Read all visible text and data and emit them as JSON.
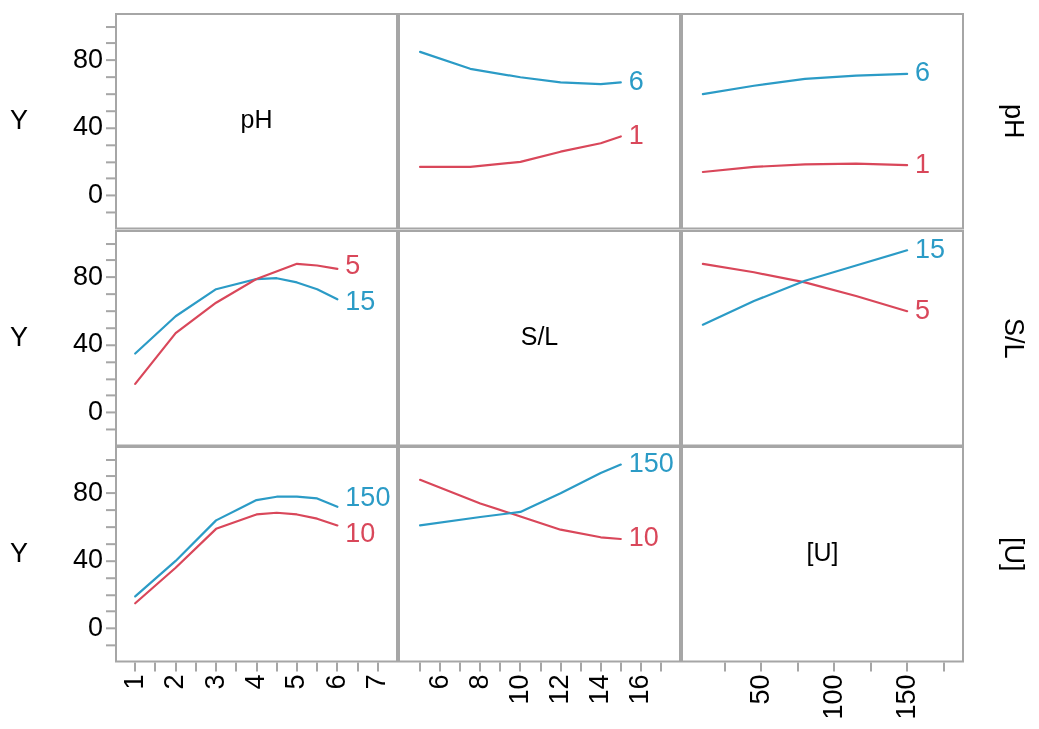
{
  "chart_data": [
    {
      "type": "line",
      "ylabel": "Y",
      "annotations": [
        "pH"
      ],
      "xlim": [
        0.5,
        7.5
      ],
      "ylim": [
        -20,
        108
      ],
      "yticks": [
        {
          "value": -10,
          "label": null
        },
        0,
        {
          "value": 10,
          "label": null
        },
        {
          "value": 20,
          "label": null
        },
        {
          "value": 30,
          "label": null
        },
        40,
        {
          "value": 50,
          "label": null
        },
        {
          "value": 60,
          "label": null
        },
        {
          "value": 70,
          "label": null
        },
        80,
        {
          "value": 90,
          "label": null
        },
        {
          "value": 100,
          "label": null
        }
      ],
      "tick_labels": "y",
      "grid": false
    },
    {
      "type": "line",
      "xlim": [
        3.9,
        18
      ],
      "ylim": [
        -20,
        108
      ],
      "tick_labels": false,
      "grid": false,
      "series": [
        {
          "name": "6",
          "color": "#2b9bc6",
          "x": [
            5,
            7.5,
            10,
            12,
            14,
            15
          ],
          "values": [
            85,
            75,
            70,
            67,
            66,
            67
          ]
        },
        {
          "name": "1",
          "color": "#d9475a",
          "x": [
            5,
            7.5,
            10,
            12,
            14,
            15
          ],
          "values": [
            17,
            17,
            20,
            26,
            31,
            35
          ]
        }
      ]
    },
    {
      "type": "line",
      "y2label": "pH",
      "xlim": [
        -5,
        189
      ],
      "ylim": [
        -20,
        108
      ],
      "tick_labels": false,
      "grid": false,
      "series": [
        {
          "name": "6",
          "color": "#2b9bc6",
          "x": [
            10,
            45,
            80,
            115,
            150
          ],
          "values": [
            60,
            65,
            69,
            71,
            72
          ]
        },
        {
          "name": "1",
          "color": "#d9475a",
          "x": [
            10,
            45,
            80,
            115,
            150
          ],
          "values": [
            14,
            17,
            18.5,
            19,
            18
          ]
        }
      ]
    },
    {
      "type": "line",
      "ylabel": "Y",
      "xlim": [
        0.5,
        7.5
      ],
      "ylim": [
        -20,
        108
      ],
      "yticks": [
        {
          "value": -10,
          "label": null
        },
        0,
        {
          "value": 10,
          "label": null
        },
        {
          "value": 20,
          "label": null
        },
        {
          "value": 30,
          "label": null
        },
        40,
        {
          "value": 50,
          "label": null
        },
        {
          "value": 60,
          "label": null
        },
        {
          "value": 70,
          "label": null
        },
        80,
        {
          "value": 90,
          "label": null
        },
        {
          "value": 100,
          "label": null
        }
      ],
      "tick_labels": "y",
      "grid": false,
      "series": [
        {
          "name": "5",
          "color": "#d9475a",
          "x": [
            1,
            2,
            3,
            4,
            5,
            5.5,
            6
          ],
          "values": [
            17,
            47,
            65,
            79,
            88,
            87,
            85
          ]
        },
        {
          "name": "15",
          "color": "#2b9bc6",
          "x": [
            1,
            2,
            3,
            4,
            4.5,
            5,
            5.5,
            6
          ],
          "values": [
            35,
            57,
            73,
            79,
            79.5,
            77,
            73,
            67
          ]
        }
      ]
    },
    {
      "type": "line",
      "annotations": [
        "S/L"
      ],
      "xlim": [
        3.9,
        18
      ],
      "ylim": [
        -20,
        108
      ],
      "tick_labels": false,
      "grid": false
    },
    {
      "type": "line",
      "y2label": "S/L",
      "xlim": [
        -5,
        189
      ],
      "ylim": [
        -20,
        108
      ],
      "tick_labels": false,
      "grid": false,
      "series": [
        {
          "name": "15",
          "color": "#2b9bc6",
          "x": [
            10,
            45,
            80,
            115,
            150
          ],
          "values": [
            52,
            66,
            78,
            87,
            96
          ]
        },
        {
          "name": "5",
          "color": "#d9475a",
          "x": [
            10,
            45,
            80,
            115,
            150
          ],
          "values": [
            88,
            83,
            77,
            69,
            60
          ]
        }
      ]
    },
    {
      "type": "line",
      "ylabel": "Y",
      "xlim": [
        0.5,
        7.5
      ],
      "ylim": [
        -20,
        108
      ],
      "xticks": [
        1,
        {
          "value": 1.5,
          "label": null
        },
        2,
        {
          "value": 2.5,
          "label": null
        },
        3,
        {
          "value": 3.5,
          "label": null
        },
        4,
        {
          "value": 4.5,
          "label": null
        },
        5,
        {
          "value": 5.5,
          "label": null
        },
        6,
        {
          "value": 6.5,
          "label": null
        },
        7
      ],
      "yticks": [
        {
          "value": -10,
          "label": null
        },
        0,
        {
          "value": 10,
          "label": null
        },
        {
          "value": 20,
          "label": null
        },
        {
          "value": 30,
          "label": null
        },
        40,
        {
          "value": 50,
          "label": null
        },
        {
          "value": 60,
          "label": null
        },
        {
          "value": 70,
          "label": null
        },
        80,
        {
          "value": 90,
          "label": null
        },
        {
          "value": 100,
          "label": null
        }
      ],
      "grid": false,
      "series": [
        {
          "name": "150",
          "color": "#2b9bc6",
          "x": [
            1,
            2,
            3,
            4,
            4.5,
            5,
            5.5,
            6
          ],
          "values": [
            19,
            40,
            64,
            76,
            78,
            78,
            77,
            72
          ]
        },
        {
          "name": "10",
          "color": "#d9475a",
          "x": [
            1,
            2,
            3,
            4,
            4.5,
            5,
            5.5,
            6
          ],
          "values": [
            15,
            36,
            59,
            67.5,
            68.5,
            67.5,
            65,
            61
          ]
        }
      ]
    },
    {
      "type": "line",
      "xlim": [
        3.9,
        18
      ],
      "ylim": [
        -20,
        108
      ],
      "xticks": [
        {
          "value": 5,
          "label": null
        },
        6,
        {
          "value": 7,
          "label": null
        },
        8,
        {
          "value": 9,
          "label": null
        },
        10,
        {
          "value": 11,
          "label": null
        },
        12,
        {
          "value": 13,
          "label": null
        },
        14,
        {
          "value": 15,
          "label": null
        },
        16,
        {
          "value": 17,
          "label": null
        }
      ],
      "tick_labels": "x",
      "grid": false,
      "series": [
        {
          "name": "150",
          "color": "#2b9bc6",
          "x": [
            5,
            8,
            10,
            12,
            14,
            15
          ],
          "values": [
            61,
            66,
            69,
            80,
            92,
            97
          ]
        },
        {
          "name": "10",
          "color": "#d9475a",
          "x": [
            5,
            8,
            9.3,
            12,
            14,
            15
          ],
          "values": [
            88,
            74,
            69,
            58.5,
            54,
            53
          ]
        }
      ]
    },
    {
      "type": "line",
      "y2label": "[U]",
      "annotations": [
        "[U]"
      ],
      "xlim": [
        -5,
        189
      ],
      "ylim": [
        -20,
        108
      ],
      "xticks": [
        {
          "value": 25,
          "label": null
        },
        50,
        {
          "value": 75,
          "label": null
        },
        100,
        {
          "value": 125,
          "label": null
        },
        150,
        {
          "value": 175,
          "label": null
        }
      ],
      "tick_labels": "x",
      "grid": false
    }
  ]
}
